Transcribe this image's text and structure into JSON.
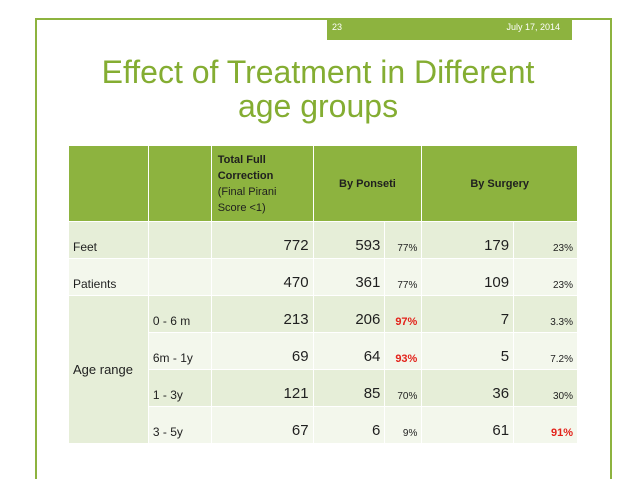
{
  "header": {
    "slide_number": "23",
    "date": "July 17, 2014"
  },
  "title": {
    "line1": "Effect of Treatment in Different",
    "line2": "age groups"
  },
  "table": {
    "head": {
      "total_line1": "Total Full",
      "total_line2": "Correction",
      "total_sub1": "(Final Pirani",
      "total_sub2": "Score <1)",
      "ponseti": "By Ponseti",
      "surgery": "By Surgery"
    },
    "rows": [
      {
        "label": "Feet",
        "sub": "",
        "total": "772",
        "ponseti": "593",
        "ponseti_pct": "77%",
        "surgery": "179",
        "surgery_pct": "23%"
      },
      {
        "label": "Patients",
        "sub": "",
        "total": "470",
        "ponseti": "361",
        "ponseti_pct": "77%",
        "surgery": "109",
        "surgery_pct": "23%"
      },
      {
        "label": "",
        "sub": "0 - 6 m",
        "total": "213",
        "ponseti": "206",
        "ponseti_pct": "97%",
        "surgery": "7",
        "surgery_pct": "3.3%"
      },
      {
        "label": "",
        "sub": "6m - 1y",
        "total": "69",
        "ponseti": "64",
        "ponseti_pct": "93%",
        "surgery": "5",
        "surgery_pct": "7.2%"
      },
      {
        "label": "",
        "sub": "1 - 3y",
        "total": "121",
        "ponseti": "85",
        "ponseti_pct": "70%",
        "surgery": "36",
        "surgery_pct": "30%"
      },
      {
        "label": "",
        "sub": "3 - 5y",
        "total": "67",
        "ponseti": "6",
        "ponseti_pct": "9%",
        "surgery": "61",
        "surgery_pct": "91%"
      }
    ],
    "age_range_label": "Age range"
  },
  "colors": {
    "accent": "#8db33f",
    "title": "#84ad32",
    "highlight": "#e3231b"
  }
}
